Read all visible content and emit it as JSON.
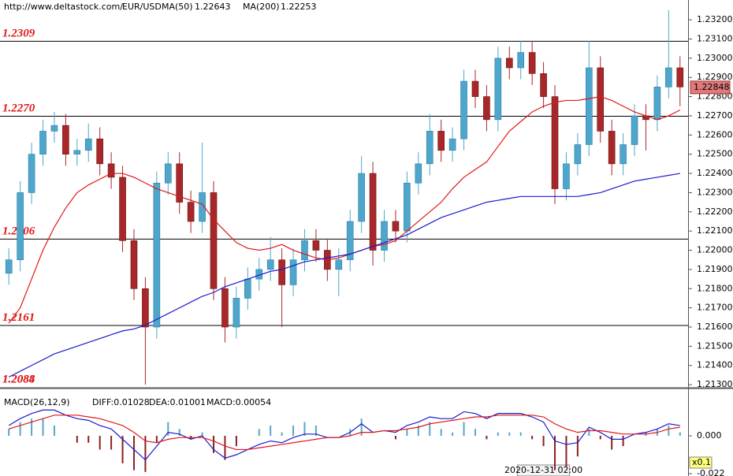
{
  "chart_data": [
    {
      "type": "candlestick",
      "source": "http://www.deltastock.com/",
      "title": "EUR/USD",
      "categories": [
        null,
        null,
        null,
        null,
        null,
        null,
        null,
        null,
        null,
        null,
        null,
        null,
        null,
        null,
        null,
        null,
        null,
        null,
        null,
        null,
        null,
        null,
        null,
        null,
        null,
        null,
        null,
        null,
        null,
        null,
        null,
        null,
        null,
        null,
        null,
        null,
        null,
        null,
        null,
        null,
        null,
        null,
        null,
        null,
        null,
        null,
        null,
        "2020-12-31 02:00",
        null,
        null,
        null,
        null,
        null,
        null,
        null,
        null,
        null,
        null,
        null,
        null
      ],
      "open": [
        1.2188,
        1.2195,
        1.223,
        1.225,
        1.2262,
        1.2265,
        1.225,
        1.2252,
        1.2258,
        1.2245,
        1.2238,
        1.2205,
        1.218,
        1.216,
        1.2235,
        1.2245,
        1.2225,
        1.2215,
        1.223,
        1.218,
        1.216,
        1.2175,
        1.2185,
        1.219,
        1.2195,
        1.2182,
        1.2195,
        1.2205,
        1.22,
        1.219,
        1.2195,
        1.2215,
        1.224,
        1.22,
        1.2215,
        1.221,
        1.2235,
        1.2245,
        1.2262,
        1.2252,
        1.2258,
        1.2288,
        1.228,
        1.2268,
        1.23,
        1.2295,
        1.2303,
        1.2292,
        1.228,
        1.2232,
        1.2245,
        1.2255,
        1.2295,
        1.2262,
        1.2245,
        1.2255,
        1.227,
        1.2268,
        1.2285,
        1.2295
      ],
      "high": [
        1.2201,
        1.2236,
        1.2256,
        1.2268,
        1.2272,
        1.2271,
        1.2258,
        1.2266,
        1.2264,
        1.2251,
        1.2244,
        1.2211,
        1.2186,
        1.2241,
        1.2251,
        1.2251,
        1.2231,
        1.2256,
        1.2236,
        1.2186,
        1.2181,
        1.2191,
        1.2196,
        1.2207,
        1.2201,
        1.2201,
        1.2211,
        1.2211,
        1.2206,
        1.2201,
        1.2221,
        1.2249,
        1.2246,
        1.2221,
        1.2221,
        1.2241,
        1.2251,
        1.2271,
        1.2268,
        1.2264,
        1.2294,
        1.2294,
        1.2286,
        1.2306,
        1.2306,
        1.2309,
        1.2309,
        1.2298,
        1.2286,
        1.2251,
        1.2261,
        1.2309,
        1.2301,
        1.2268,
        1.2261,
        1.2276,
        1.2276,
        1.2291,
        1.2325,
        1.2301
      ],
      "low": [
        1.2182,
        1.2189,
        1.2224,
        1.2244,
        1.2256,
        1.2244,
        1.2244,
        1.2246,
        1.2239,
        1.2232,
        1.2199,
        1.2174,
        1.213,
        1.2154,
        1.2229,
        1.2219,
        1.2209,
        1.2209,
        1.2174,
        1.2152,
        1.2154,
        1.2169,
        1.2179,
        1.2184,
        1.216,
        1.2176,
        1.2189,
        1.2194,
        1.2184,
        1.2176,
        1.2189,
        1.2209,
        1.2192,
        1.2194,
        1.2204,
        1.2204,
        1.2229,
        1.2239,
        1.2246,
        1.2246,
        1.2252,
        1.2274,
        1.2262,
        1.2262,
        1.2289,
        1.2289,
        1.2286,
        1.2274,
        1.2224,
        1.2226,
        1.2239,
        1.2249,
        1.2256,
        1.2239,
        1.2239,
        1.2249,
        1.2252,
        1.2262,
        1.2279,
        1.2275
      ],
      "close": [
        1.2195,
        1.223,
        1.225,
        1.2262,
        1.2265,
        1.225,
        1.2252,
        1.2258,
        1.2245,
        1.2238,
        1.2205,
        1.218,
        1.216,
        1.2235,
        1.2245,
        1.2225,
        1.2215,
        1.223,
        1.218,
        1.216,
        1.2175,
        1.2185,
        1.219,
        1.2195,
        1.2182,
        1.2195,
        1.2205,
        1.22,
        1.219,
        1.2195,
        1.2215,
        1.224,
        1.22,
        1.2215,
        1.221,
        1.2235,
        1.2245,
        1.2262,
        1.2252,
        1.2258,
        1.2288,
        1.228,
        1.2268,
        1.23,
        1.2295,
        1.2303,
        1.2292,
        1.228,
        1.2232,
        1.2245,
        1.2255,
        1.2295,
        1.2262,
        1.2245,
        1.2255,
        1.227,
        1.2268,
        1.2285,
        1.2295,
        1.2285
      ],
      "up_color": "#4fa6cc",
      "down_color": "#a8282a",
      "series": [
        {
          "name": "MA(50)",
          "last": 1.22643,
          "color": "#e01818",
          "values": [
            1.2162,
            1.217,
            1.2185,
            1.22,
            1.2212,
            1.2222,
            1.223,
            1.2234,
            1.2237,
            1.224,
            1.224,
            1.2238,
            1.2235,
            1.2232,
            1.223,
            1.2228,
            1.2226,
            1.2224,
            1.2216,
            1.221,
            1.2204,
            1.2201,
            1.22,
            1.2201,
            1.2203,
            1.22,
            1.2198,
            1.2196,
            1.2195,
            1.2196,
            1.2198,
            1.22,
            1.2202,
            1.2203,
            1.2205,
            1.221,
            1.2215,
            1.222,
            1.2225,
            1.2232,
            1.2238,
            1.2242,
            1.2246,
            1.2254,
            1.2262,
            1.2267,
            1.2272,
            1.2275,
            1.2277,
            1.2278,
            1.2278,
            1.2279,
            1.228,
            1.2278,
            1.2275,
            1.2272,
            1.227,
            1.2268,
            1.227,
            1.2273
          ]
        },
        {
          "name": "MA(200)",
          "last": 1.22253,
          "color": "#1a1ad0",
          "values": [
            1.2134,
            1.2137,
            1.214,
            1.2143,
            1.2146,
            1.2148,
            1.215,
            1.2152,
            1.2154,
            1.2156,
            1.2158,
            1.2159,
            1.2161,
            1.2164,
            1.2167,
            1.217,
            1.2173,
            1.2176,
            1.2178,
            1.2181,
            1.2183,
            1.2185,
            1.2187,
            1.2189,
            1.219,
            1.2192,
            1.2194,
            1.2195,
            1.2196,
            1.2197,
            1.2198,
            1.22,
            1.2202,
            1.2204,
            1.2206,
            1.2208,
            1.2211,
            1.2214,
            1.2217,
            1.2219,
            1.2221,
            1.2223,
            1.2225,
            1.2226,
            1.2227,
            1.2228,
            1.2228,
            1.2228,
            1.2228,
            1.2228,
            1.2228,
            1.2229,
            1.223,
            1.2232,
            1.2234,
            1.2236,
            1.2237,
            1.2238,
            1.2239,
            1.224
          ]
        }
      ],
      "levels": [
        {
          "value": 1.2309,
          "label": "1.2309"
        },
        {
          "value": 1.227,
          "label": "1.2270"
        },
        {
          "value": 1.2206,
          "label": "1.2206"
        },
        {
          "value": 1.2161,
          "label": "1.2161"
        },
        {
          "value": 1.2088,
          "label": "1.2088"
        },
        {
          "value": 1.2084,
          "label": "1.2084"
        }
      ],
      "last_price": 1.22848,
      "ylim": [
        1.21284,
        1.23303
      ],
      "yticks": [
        {
          "value": 1.213,
          "label": "1.21300"
        },
        {
          "value": 1.214,
          "label": "1.21400"
        },
        {
          "value": 1.215,
          "label": "1.21500"
        },
        {
          "value": 1.216,
          "label": "1.21600"
        },
        {
          "value": 1.217,
          "label": "1.21700"
        },
        {
          "value": 1.218,
          "label": "1.21800"
        },
        {
          "value": 1.219,
          "label": "1.21900"
        },
        {
          "value": 1.22,
          "label": "1.22000"
        },
        {
          "value": 1.221,
          "label": "1.22100"
        },
        {
          "value": 1.222,
          "label": "1.22200"
        },
        {
          "value": 1.223,
          "label": "1.22300"
        },
        {
          "value": 1.224,
          "label": "1.22400"
        },
        {
          "value": 1.225,
          "label": "1.22500"
        },
        {
          "value": 1.226,
          "label": "1.22600"
        },
        {
          "value": 1.227,
          "label": "1.22700"
        },
        {
          "value": 1.228,
          "label": "1.22800"
        },
        {
          "value": 1.229,
          "label": "1.22900"
        },
        {
          "value": 1.23,
          "label": "1.23000"
        },
        {
          "value": 1.231,
          "label": "1.23100"
        },
        {
          "value": 1.232,
          "label": "1.23200"
        }
      ]
    },
    {
      "type": "macd",
      "title": "MACD(26,12,9)",
      "series": [
        {
          "name": "DIFF:0.01028",
          "color": "#1a1ad0",
          "values": [
            0.006,
            0.01,
            0.013,
            0.015,
            0.015,
            0.012,
            0.01,
            0.009,
            0.006,
            0.004,
            -0.002,
            -0.008,
            -0.014,
            -0.006,
            0.002,
            0.001,
            -0.002,
            0.0,
            -0.008,
            -0.013,
            -0.011,
            -0.008,
            -0.005,
            -0.003,
            -0.004,
            -0.001,
            0.001,
            0.001,
            -0.001,
            -0.001,
            0.002,
            0.007,
            0.002,
            0.003,
            0.002,
            0.006,
            0.008,
            0.011,
            0.01,
            0.01,
            0.014,
            0.013,
            0.01,
            0.013,
            0.013,
            0.013,
            0.011,
            0.008,
            -0.003,
            -0.005,
            -0.004,
            0.005,
            0.002,
            -0.002,
            -0.002,
            0.001,
            0.002,
            0.004,
            0.007,
            0.006
          ]
        },
        {
          "name": "DEA:0.01001",
          "color": "#e01818",
          "values": [
            0.004,
            0.006,
            0.008,
            0.01,
            0.012,
            0.012,
            0.012,
            0.011,
            0.01,
            0.008,
            0.006,
            0.002,
            -0.003,
            -0.004,
            -0.002,
            -0.001,
            -0.001,
            -0.001,
            -0.003,
            -0.006,
            -0.008,
            -0.008,
            -0.007,
            -0.006,
            -0.005,
            -0.004,
            -0.003,
            -0.002,
            -0.001,
            -0.001,
            0.0,
            0.002,
            0.002,
            0.003,
            0.003,
            0.004,
            0.005,
            0.007,
            0.008,
            0.009,
            0.01,
            0.011,
            0.011,
            0.012,
            0.012,
            0.012,
            0.012,
            0.011,
            0.007,
            0.004,
            0.002,
            0.003,
            0.003,
            0.002,
            0.001,
            0.001,
            0.001,
            0.002,
            0.004,
            0.005
          ]
        },
        {
          "name": "MACD:0.00054",
          "color": "#5aa5c8",
          "negative_color": "#8b2020",
          "bars": true,
          "values": [
            0.004,
            0.008,
            0.01,
            0.01,
            0.006,
            0,
            -0.004,
            -0.004,
            -0.008,
            -0.008,
            -0.016,
            -0.02,
            -0.021,
            -0.004,
            0.008,
            0.004,
            -0.002,
            0.002,
            -0.01,
            -0.014,
            -0.006,
            0,
            0.004,
            0.006,
            0.002,
            0.006,
            0.008,
            0.006,
            0,
            0,
            0.004,
            0.01,
            0,
            0,
            -0.002,
            0.004,
            0.006,
            0.008,
            0.004,
            0.002,
            0.008,
            0.004,
            -0.002,
            0.002,
            0.002,
            0.002,
            -0.002,
            -0.006,
            -0.02,
            -0.018,
            -0.012,
            0.004,
            -0.002,
            -0.008,
            -0.006,
            0,
            0.002,
            0.004,
            0.006,
            0.002
          ]
        }
      ],
      "scale_label": "x0.1",
      "ylim": [
        -0.022,
        0.0243
      ],
      "yticks": [
        {
          "value": 0,
          "label": "0.000"
        },
        {
          "value": -0.022,
          "label": "-0.022"
        }
      ]
    }
  ]
}
